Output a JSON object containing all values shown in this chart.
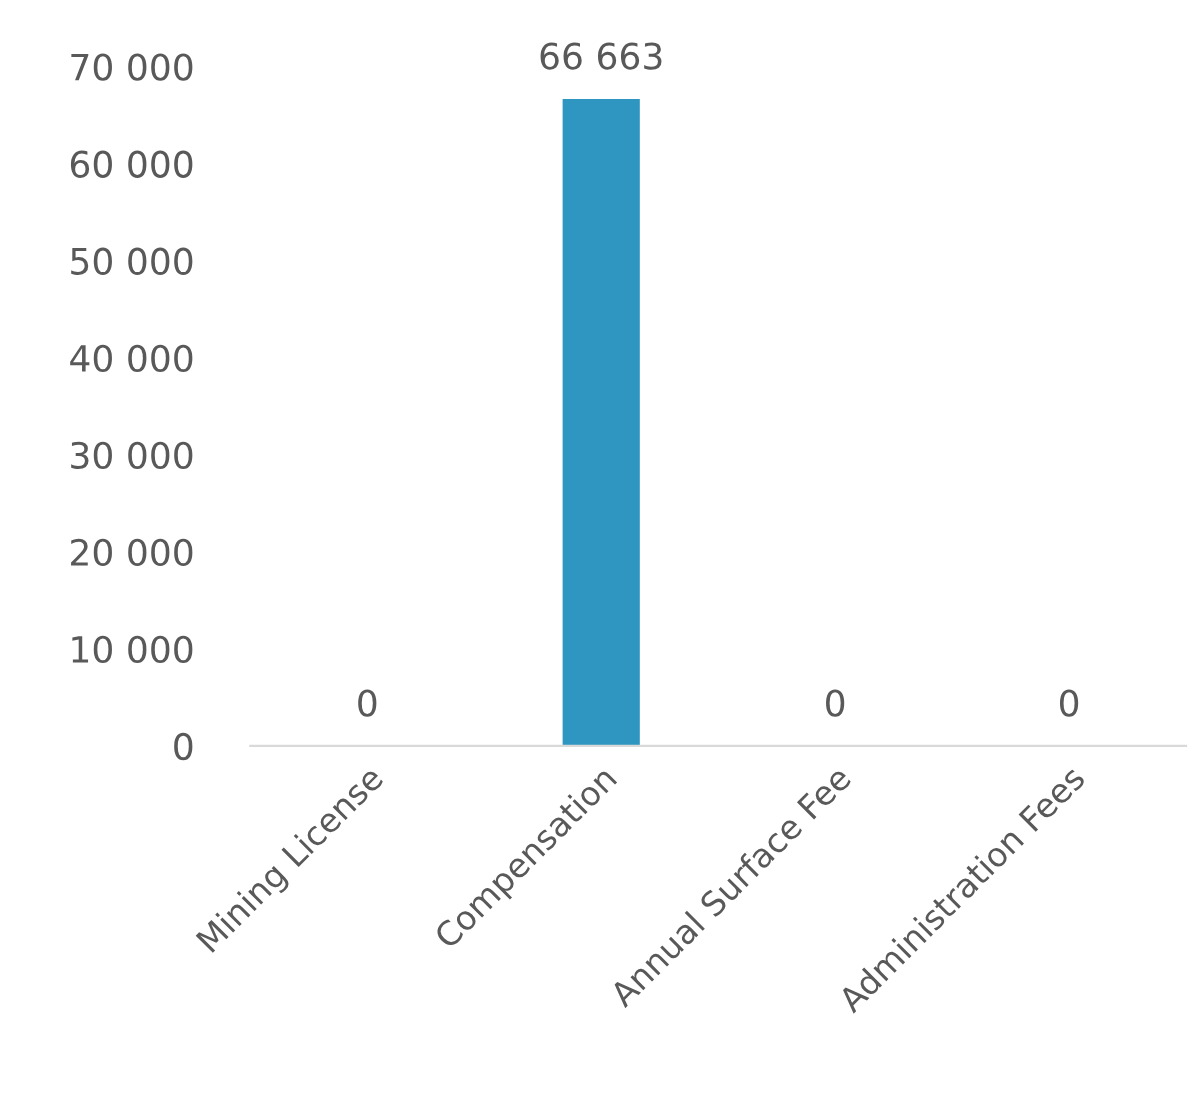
{
  "chart_data": {
    "type": "bar",
    "categories": [
      "Mining License",
      "Compensation",
      "Annual Surface Fee",
      "Administration Fees"
    ],
    "values": [
      0,
      66663,
      0,
      0
    ],
    "value_labels": [
      "0",
      "66 663",
      "0",
      "0"
    ],
    "color": "#2e96c0",
    "ylim": [
      0,
      70000
    ],
    "yticks": [
      0,
      {
        "value": 10000,
        "label": "10 000"
      },
      {
        "value": 20000,
        "label": "20 000"
      },
      {
        "value": 30000,
        "label": "30 000"
      },
      {
        "value": 40000,
        "label": "40 000"
      },
      {
        "value": 50000,
        "label": "50 000"
      },
      {
        "value": 60000,
        "label": "60 000"
      },
      {
        "value": 70000,
        "label": "70 000"
      }
    ],
    "grid": false,
    "legend": false
  }
}
